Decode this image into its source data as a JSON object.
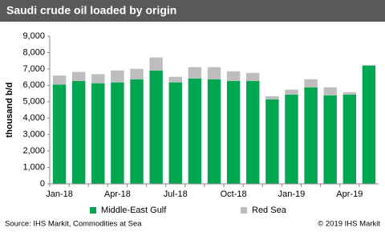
{
  "chart_data": {
    "type": "stacked_bar",
    "title": "Saudi crude oil loaded by origin",
    "y_label": "thousand b/d",
    "categories": [
      "Jan-18",
      null,
      null,
      "Apr-18",
      null,
      null,
      "Jul-18",
      null,
      null,
      "Oct-18",
      null,
      null,
      "Jan-19",
      null,
      null,
      "Apr-19",
      null
    ],
    "series": [
      {
        "name": "Middle-East Gulf",
        "color": "#00a650",
        "values": [
          6050,
          6270,
          6130,
          6180,
          6370,
          6910,
          6180,
          6420,
          6370,
          6270,
          6270,
          5150,
          5440,
          5880,
          5390,
          5440,
          7200
        ]
      },
      {
        "name": "Red Sea",
        "color": "#bdbdbd",
        "values": [
          550,
          550,
          550,
          730,
          640,
          790,
          340,
          690,
          740,
          590,
          490,
          190,
          300,
          490,
          490,
          150,
          50
        ]
      }
    ],
    "ylim": [
      0,
      9000
    ],
    "yticks": [
      0,
      {
        "value": 1000,
        "label": "1,000"
      },
      {
        "value": 2000,
        "label": "2,000"
      },
      {
        "value": 3000,
        "label": "3,000"
      },
      {
        "value": 4000,
        "label": "4,000"
      },
      {
        "value": 5000,
        "label": "5,000"
      },
      {
        "value": 6000,
        "label": "6,000"
      },
      {
        "value": 7000,
        "label": "7,000"
      },
      {
        "value": 8000,
        "label": "8,000"
      },
      {
        "value": 9000,
        "label": "9,000"
      }
    ],
    "grid": false,
    "source": "Source: IHS Markit, Commodities at Sea",
    "copyright": "© 2019 IHS Markit"
  }
}
